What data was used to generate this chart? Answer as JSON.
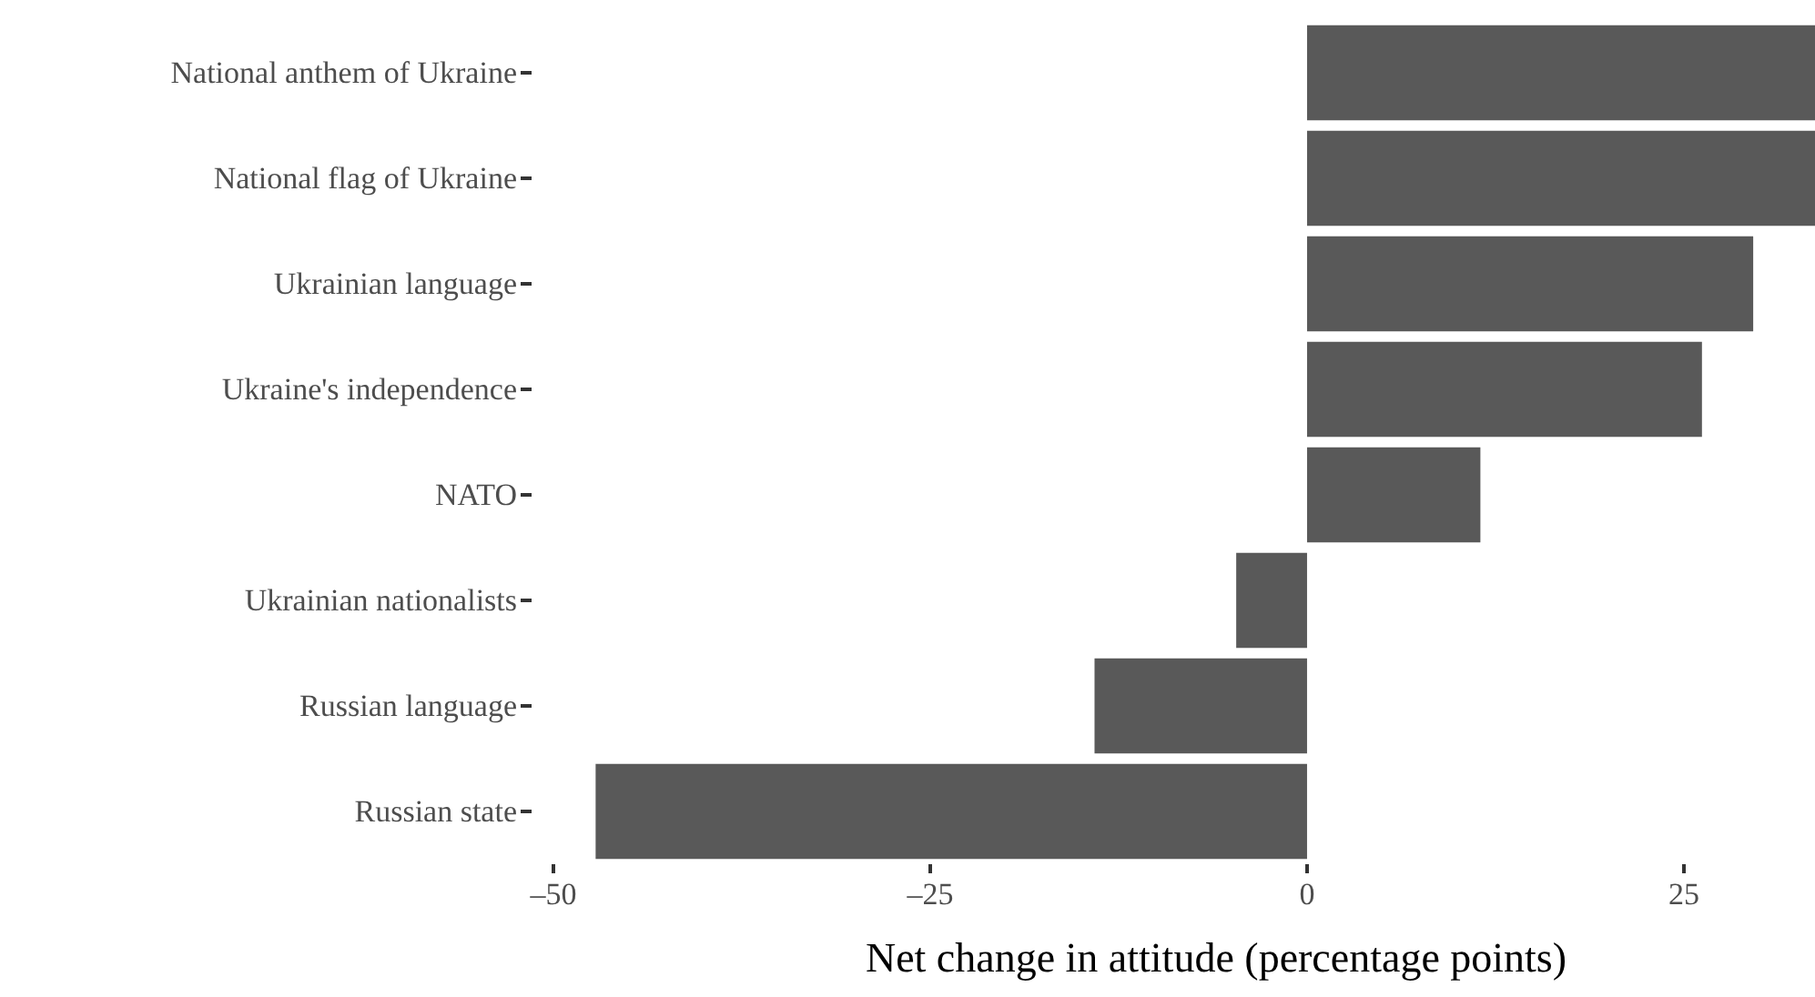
{
  "chart_data": {
    "type": "bar",
    "orientation": "horizontal",
    "xlabel": "Net change in attitude (percentage points)",
    "categories": [
      "National anthem of Ukraine",
      "National flag of Ukraine",
      "Ukrainian language",
      "Ukraine's independence",
      "NATO",
      "Ukrainian nationalists",
      "Russian language",
      "Russian state"
    ],
    "values": [
      33.7,
      33.7,
      29.6,
      26.2,
      11.5,
      -4.7,
      -14.1,
      -47.2
    ],
    "color": "#595959",
    "xlim": [
      -50,
      33.7
    ],
    "xticks": [
      {
        "value": -50,
        "label": "–50"
      },
      {
        "value": -25,
        "label": "–25"
      },
      0,
      25
    ],
    "grid": false
  }
}
